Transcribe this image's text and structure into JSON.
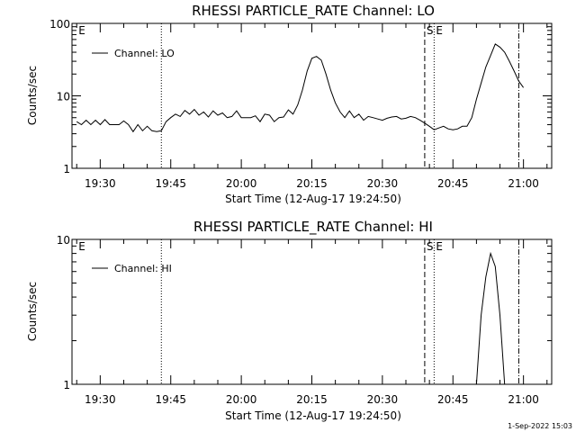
{
  "footer": {
    "date_stamp": "1-Sep-2022 15:03"
  },
  "colors": {
    "background": "#ffffff",
    "ink": "#000000"
  },
  "x_axis": {
    "label": "Start Time (12-Aug-17 19:24:50)",
    "range_min": [
      19.4,
      21.1
    ],
    "tick_labels": [
      "19:30",
      "19:45",
      "20:00",
      "20:15",
      "20:30",
      "20:45",
      "21:00"
    ],
    "tick_values_min": [
      1170,
      1185,
      1200,
      1215,
      1230,
      1245,
      1260
    ]
  },
  "chart_data": [
    {
      "type": "line",
      "title": "RHESSI PARTICLE_RATE Channel: LO",
      "xlabel": "Start Time (12-Aug-17 19:24:50)",
      "ylabel": "Counts/sec",
      "yscale": "log",
      "ylim": [
        1,
        100
      ],
      "ytick_labels": [
        "1",
        "10",
        "100"
      ],
      "legend": {
        "entry": "Channel: LO",
        "placement": "top-left"
      },
      "markers": [
        {
          "label": "E",
          "time": "19:25",
          "style": "none"
        },
        {
          "label": "",
          "time": "19:43",
          "style": "dotted"
        },
        {
          "label": "S",
          "time": "20:39",
          "style": "dashed"
        },
        {
          "label": "E",
          "time": "20:41",
          "style": "dotted"
        },
        {
          "label": "",
          "time": "20:59",
          "style": "dash-dot"
        }
      ],
      "series": [
        {
          "name": "Channel: LO",
          "points": [
            [
              "19:25",
              4.4
            ],
            [
              "19:26",
              4.0
            ],
            [
              "19:27",
              4.6
            ],
            [
              "19:28",
              4.0
            ],
            [
              "19:29",
              4.6
            ],
            [
              "19:30",
              4.0
            ],
            [
              "19:31",
              4.7
            ],
            [
              "19:32",
              4.0
            ],
            [
              "19:33",
              4.0
            ],
            [
              "19:34",
              4.0
            ],
            [
              "19:35",
              4.5
            ],
            [
              "19:36",
              4.0
            ],
            [
              "19:37",
              3.2
            ],
            [
              "19:38",
              4.0
            ],
            [
              "19:39",
              3.3
            ],
            [
              "19:40",
              3.8
            ],
            [
              "19:41",
              3.3
            ],
            [
              "19:42",
              3.2
            ],
            [
              "19:43",
              3.3
            ],
            [
              "19:44",
              4.4
            ],
            [
              "19:45",
              5.0
            ],
            [
              "19:46",
              5.6
            ],
            [
              "19:47",
              5.2
            ],
            [
              "19:48",
              6.3
            ],
            [
              "19:49",
              5.6
            ],
            [
              "19:50",
              6.5
            ],
            [
              "19:51",
              5.4
            ],
            [
              "19:52",
              6.0
            ],
            [
              "19:53",
              5.1
            ],
            [
              "19:54",
              6.2
            ],
            [
              "19:55",
              5.4
            ],
            [
              "19:56",
              5.8
            ],
            [
              "19:57",
              5.0
            ],
            [
              "19:58",
              5.2
            ],
            [
              "19:59",
              6.2
            ],
            [
              "20:00",
              5.0
            ],
            [
              "20:01",
              5.0
            ],
            [
              "20:02",
              5.0
            ],
            [
              "20:03",
              5.3
            ],
            [
              "20:04",
              4.4
            ],
            [
              "20:05",
              5.6
            ],
            [
              "20:06",
              5.4
            ],
            [
              "20:07",
              4.4
            ],
            [
              "20:08",
              5.0
            ],
            [
              "20:09",
              5.1
            ],
            [
              "20:10",
              6.4
            ],
            [
              "20:11",
              5.6
            ],
            [
              "20:12",
              7.5
            ],
            [
              "20:13",
              12.0
            ],
            [
              "20:14",
              22.0
            ],
            [
              "20:15",
              33.0
            ],
            [
              "20:16",
              35.0
            ],
            [
              "20:17",
              31.0
            ],
            [
              "20:18",
              20.0
            ],
            [
              "20:19",
              12.0
            ],
            [
              "20:20",
              8.0
            ],
            [
              "20:21",
              6.0
            ],
            [
              "20:22",
              5.0
            ],
            [
              "20:23",
              6.2
            ],
            [
              "20:24",
              5.0
            ],
            [
              "20:25",
              5.6
            ],
            [
              "20:26",
              4.6
            ],
            [
              "20:27",
              5.2
            ],
            [
              "20:28",
              5.0
            ],
            [
              "20:29",
              4.8
            ],
            [
              "20:30",
              4.6
            ],
            [
              "20:31",
              4.9
            ],
            [
              "20:32",
              5.1
            ],
            [
              "20:33",
              5.2
            ],
            [
              "20:34",
              4.8
            ],
            [
              "20:35",
              4.9
            ],
            [
              "20:36",
              5.2
            ],
            [
              "20:37",
              5.0
            ],
            [
              "20:38",
              4.6
            ],
            [
              "20:39",
              4.2
            ],
            [
              "20:40",
              3.8
            ],
            [
              "20:41",
              3.4
            ],
            [
              "20:42",
              3.6
            ],
            [
              "20:43",
              3.8
            ],
            [
              "20:44",
              3.5
            ],
            [
              "20:45",
              3.4
            ],
            [
              "20:46",
              3.5
            ],
            [
              "20:47",
              3.8
            ],
            [
              "20:48",
              3.8
            ],
            [
              "20:49",
              5.0
            ],
            [
              "20:50",
              9.0
            ],
            [
              "20:51",
              15.0
            ],
            [
              "20:52",
              25.0
            ],
            [
              "20:53",
              36.0
            ],
            [
              "20:54",
              52.0
            ],
            [
              "20:55",
              47.0
            ],
            [
              "20:56",
              40.0
            ],
            [
              "20:57",
              30.0
            ],
            [
              "20:58",
              22.0
            ],
            [
              "20:59",
              16.0
            ],
            [
              "21:00",
              13.0
            ]
          ]
        }
      ]
    },
    {
      "type": "line",
      "title": "RHESSI PARTICLE_RATE Channel: HI",
      "xlabel": "Start Time (12-Aug-17 19:24:50)",
      "ylabel": "Counts/sec",
      "yscale": "log",
      "ylim": [
        1,
        10
      ],
      "ytick_labels": [
        "1",
        "10"
      ],
      "legend": {
        "entry": "Channel: HI",
        "placement": "top-left"
      },
      "markers": [
        {
          "label": "E",
          "time": "19:25",
          "style": "none"
        },
        {
          "label": "",
          "time": "19:43",
          "style": "dotted"
        },
        {
          "label": "S",
          "time": "20:39",
          "style": "dashed"
        },
        {
          "label": "E",
          "time": "20:41",
          "style": "dotted"
        },
        {
          "label": "",
          "time": "20:59",
          "style": "dash-dot"
        }
      ],
      "series": [
        {
          "name": "Channel: HI",
          "points": [
            [
              "20:50",
              1.0
            ],
            [
              "20:51",
              3.0
            ],
            [
              "20:52",
              5.5
            ],
            [
              "20:53",
              8.0
            ],
            [
              "20:54",
              6.5
            ],
            [
              "20:55",
              3.0
            ],
            [
              "20:56",
              1.0
            ]
          ]
        }
      ]
    }
  ]
}
